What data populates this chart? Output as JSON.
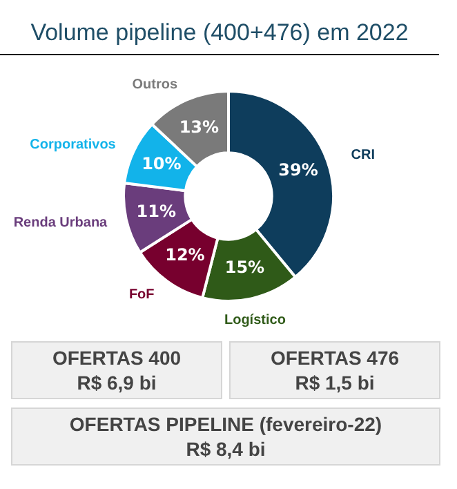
{
  "chart_data": {
    "type": "donut",
    "title": "Volume pipeline (400+476) em 2022",
    "categories": [
      "CRI",
      "Logístico",
      "FoF",
      "Renda Urbana",
      "Corporativos",
      "Outros"
    ],
    "values": [
      39,
      15,
      12,
      11,
      10,
      13
    ],
    "colors": [
      "#0e3d5c",
      "#2f5a18",
      "#77002e",
      "#6a3d7c",
      "#12b3ea",
      "#7a7a7a"
    ],
    "value_labels": [
      "39%",
      "15%",
      "12%",
      "11%",
      "10%",
      "13%"
    ],
    "legend": false,
    "annotations": [
      "OFERTAS 400\nR$ 6,9 bi",
      "OFERTAS 476\nR$ 1,5 bi",
      "OFERTAS PIPELINE (fevereiro-22)\nR$ 8,4 bi"
    ]
  }
}
